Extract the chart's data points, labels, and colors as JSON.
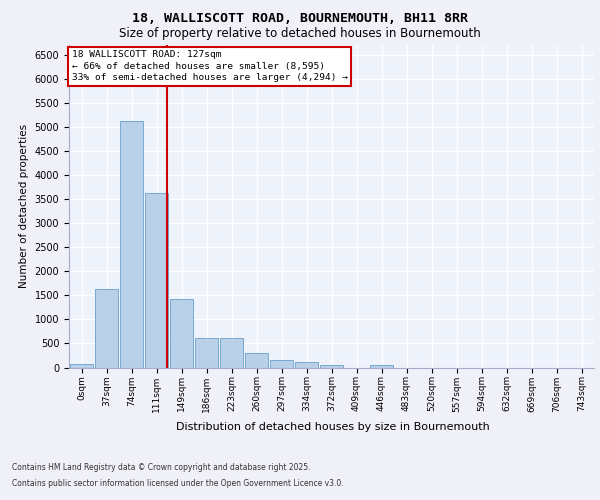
{
  "title_line1": "18, WALLISCOTT ROAD, BOURNEMOUTH, BH11 8RR",
  "title_line2": "Size of property relative to detached houses in Bournemouth",
  "xlabel": "Distribution of detached houses by size in Bournemouth",
  "ylabel": "Number of detached properties",
  "bar_color": "#b8d0e8",
  "bar_edge_color": "#6aa0cc",
  "background_color": "#eef2fa",
  "grid_color": "#ffffff",
  "bin_labels": [
    "0sqm",
    "37sqm",
    "74sqm",
    "111sqm",
    "149sqm",
    "186sqm",
    "223sqm",
    "260sqm",
    "297sqm",
    "334sqm",
    "372sqm",
    "409sqm",
    "446sqm",
    "483sqm",
    "520sqm",
    "557sqm",
    "594sqm",
    "632sqm",
    "669sqm",
    "706sqm",
    "743sqm"
  ],
  "bar_heights": [
    75,
    1640,
    5130,
    3620,
    1420,
    615,
    615,
    310,
    155,
    105,
    55,
    0,
    55,
    0,
    0,
    0,
    0,
    0,
    0,
    0,
    0
  ],
  "vline_x": 3.43,
  "annotation_title": "18 WALLISCOTT ROAD: 127sqm",
  "annotation_line2": "← 66% of detached houses are smaller (8,595)",
  "annotation_line3": "33% of semi-detached houses are larger (4,294) →",
  "annotation_box_color": "#ffffff",
  "annotation_box_edge_color": "#cc0000",
  "vline_color": "#cc0000",
  "ylim": [
    0,
    6700
  ],
  "yticks": [
    0,
    500,
    1000,
    1500,
    2000,
    2500,
    3000,
    3500,
    4000,
    4500,
    5000,
    5500,
    6000,
    6500
  ],
  "footnote1": "Contains HM Land Registry data © Crown copyright and database right 2025.",
  "footnote2": "Contains public sector information licensed under the Open Government Licence v3.0."
}
